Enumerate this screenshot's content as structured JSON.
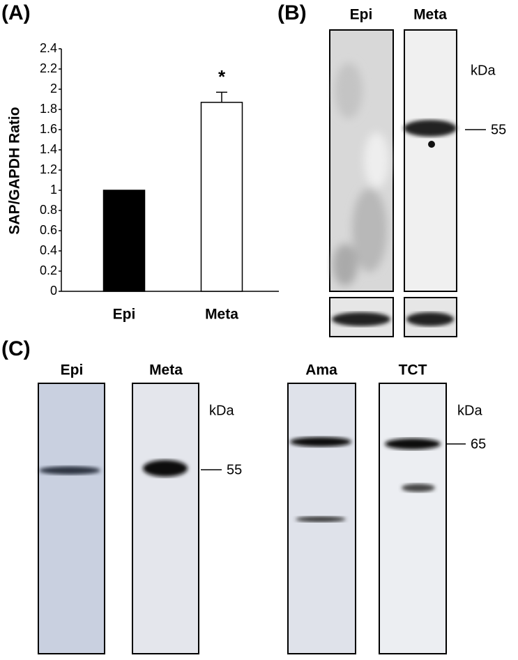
{
  "chart_data": {
    "type": "bar",
    "panel_label": "(A)",
    "y_label": "SAP/GAPDH Ratio",
    "categories": [
      "Epi",
      "Meta"
    ],
    "values": [
      1,
      1.87
    ],
    "errors": [
      null,
      0.1
    ],
    "colors": [
      "#000000",
      "#ffffff"
    ],
    "annotations": [
      null,
      "*"
    ],
    "ylim": [
      0,
      2.4
    ],
    "yticks": [
      0,
      0.2,
      0.4,
      0.6,
      0.8,
      1,
      1.2,
      1.4,
      1.6,
      1.8,
      2,
      2.2,
      2.4
    ],
    "grid": false
  },
  "panel_b": {
    "label": "(B)",
    "lanes": [
      "Epi",
      "Meta"
    ],
    "unit": "kDa",
    "marker": "55"
  },
  "panel_c": {
    "label": "(C)",
    "lanes": [
      "Epi",
      "Meta",
      "Ama",
      "TCT"
    ],
    "unit_left": "kDa",
    "marker_left": "55",
    "unit_right": "kDa",
    "marker_right": "65"
  }
}
